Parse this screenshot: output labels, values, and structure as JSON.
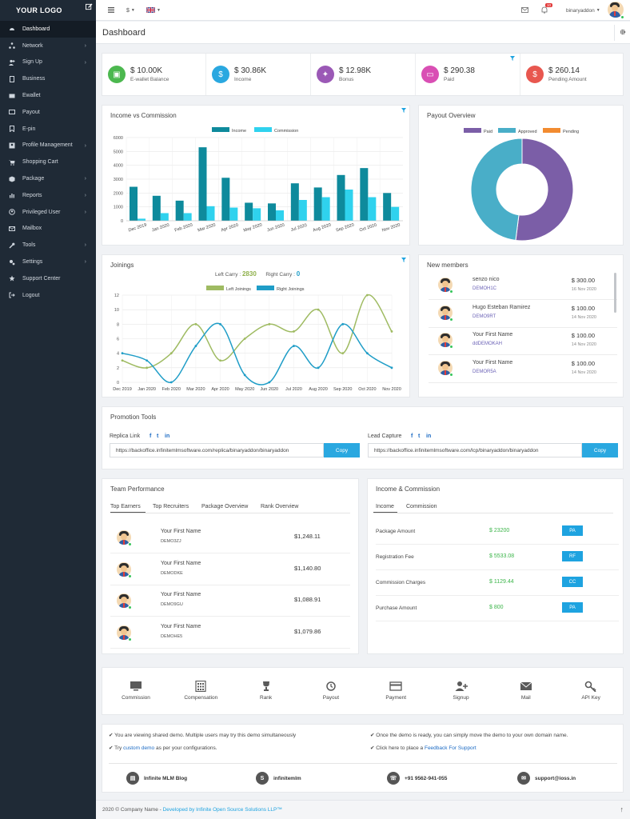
{
  "app": {
    "logo": "YOUR LOGO"
  },
  "sidebar": {
    "items": [
      {
        "label": "Dashboard",
        "icon": "dashboard-icon",
        "arrow": false,
        "active": true
      },
      {
        "label": "Network",
        "icon": "network-icon",
        "arrow": true
      },
      {
        "label": "Sign Up",
        "icon": "user-plus-icon",
        "arrow": true
      },
      {
        "label": "Business",
        "icon": "business-icon",
        "arrow": false
      },
      {
        "label": "Ewallet",
        "icon": "wallet-icon",
        "arrow": false
      },
      {
        "label": "Payout",
        "icon": "payout-icon",
        "arrow": false
      },
      {
        "label": "E-pin",
        "icon": "bookmark-icon",
        "arrow": false
      },
      {
        "label": "Profile Management",
        "icon": "profile-icon",
        "arrow": true
      },
      {
        "label": "Shopping Cart",
        "icon": "cart-icon",
        "arrow": false
      },
      {
        "label": "Package",
        "icon": "package-icon",
        "arrow": true
      },
      {
        "label": "Reports",
        "icon": "reports-icon",
        "arrow": true
      },
      {
        "label": "Privileged User",
        "icon": "privileged-user-icon",
        "arrow": true
      },
      {
        "label": "Mailbox",
        "icon": "mailbox-icon",
        "arrow": false
      },
      {
        "label": "Tools",
        "icon": "tools-icon",
        "arrow": true
      },
      {
        "label": "Settings",
        "icon": "settings-icon",
        "arrow": true
      },
      {
        "label": "Support Center",
        "icon": "support-icon",
        "arrow": false
      },
      {
        "label": "Logout",
        "icon": "logout-icon",
        "arrow": false
      }
    ]
  },
  "topbar": {
    "currency": "$",
    "notifications": "10",
    "username": "binaryaddon"
  },
  "page": {
    "title": "Dashboard"
  },
  "stats": [
    {
      "value": "$ 10.00K",
      "label": "E-wallet Balance",
      "color": "#4cb84f"
    },
    {
      "value": "$ 30.86K",
      "label": "Income",
      "color": "#2aa8e0"
    },
    {
      "value": "$ 12.98K",
      "label": "Bonus",
      "color": "#9b59b6"
    },
    {
      "value": "$ 290.38",
      "label": "Paid",
      "color": "#d94fb4"
    },
    {
      "value": "$ 260.14",
      "label": "Pending Amount",
      "color": "#e8574f"
    }
  ],
  "income_chart": {
    "title": "Income vs Commission",
    "legend": [
      "Income",
      "Commission"
    ],
    "colors": [
      "#0e8a9c",
      "#2fd2ee"
    ]
  },
  "payout_chart": {
    "title": "Payout Overview",
    "legend": [
      "Paid",
      "Approved",
      "Pending"
    ],
    "colors": [
      "#7b5ea7",
      "#49aec8",
      "#f28b30"
    ]
  },
  "joinings_chart": {
    "title": "Joinings",
    "left_carry_label": "Left Carry :",
    "left_carry": "2830",
    "right_carry_label": "Right Carry :",
    "right_carry": "0",
    "legend": [
      "Left Joinings",
      "Right Joinings"
    ],
    "colors": [
      "#9fbb62",
      "#1f9dc7"
    ]
  },
  "chart_data": [
    {
      "type": "bar",
      "title": "Income vs Commission",
      "categories": [
        "Dec 2019",
        "Jan 2020",
        "Feb 2020",
        "Mar 2020",
        "Apr 2020",
        "May 2020",
        "Jun 2020",
        "Jul 2020",
        "Aug 2020",
        "Sep 2020",
        "Oct 2020",
        "Nov 2020"
      ],
      "series": [
        {
          "name": "Income",
          "values": [
            2450,
            1800,
            1450,
            5300,
            3100,
            1300,
            1250,
            2700,
            2400,
            3300,
            3800,
            2000
          ]
        },
        {
          "name": "Commission",
          "values": [
            150,
            550,
            550,
            1050,
            950,
            900,
            750,
            1500,
            1700,
            2250,
            1700,
            1000
          ]
        }
      ],
      "ylim": [
        0,
        6000
      ],
      "yticks": [
        0,
        1000,
        2000,
        3000,
        4000,
        5000,
        6000
      ],
      "grid": true,
      "legend": "top-center"
    },
    {
      "type": "pie",
      "title": "Payout Overview",
      "categories": [
        "Paid",
        "Approved",
        "Pending"
      ],
      "values": [
        52,
        48,
        0
      ],
      "legend": "top-center"
    },
    {
      "type": "line",
      "title": "Joinings",
      "categories": [
        "Dec 2019",
        "Jan 2020",
        "Feb 2020",
        "Mar 2020",
        "Apr 2020",
        "May 2020",
        "Jun 2020",
        "Jul 2020",
        "Aug 2020",
        "Sep 2020",
        "Oct 2020",
        "Nov 2020"
      ],
      "series": [
        {
          "name": "Left Joinings",
          "values": [
            3,
            2,
            4,
            8,
            3,
            6,
            8,
            7,
            10,
            4,
            12,
            7
          ]
        },
        {
          "name": "Right Joinings",
          "values": [
            4,
            3,
            0,
            5,
            8,
            1,
            0,
            5,
            2,
            8,
            4,
            2
          ]
        }
      ],
      "ylim": [
        0,
        12
      ],
      "yticks": [
        0,
        2,
        4,
        6,
        8,
        10,
        12
      ],
      "grid": true,
      "legend": "top-center"
    }
  ],
  "new_members": {
    "title": "New members",
    "items": [
      {
        "name": "senzo nico",
        "id": "DEMOH1C",
        "amount": "$ 300.00",
        "date": "16 Nov 2020"
      },
      {
        "name": "Hugo Esteban Ramirez",
        "id": "DEMO9RT",
        "amount": "$ 100.00",
        "date": "14 Nov 2020"
      },
      {
        "name": "Your First Name",
        "id": "ddDEMOKAH",
        "amount": "$ 100.00",
        "date": "14 Nov 2020"
      },
      {
        "name": "Your First Name",
        "id": "DEMOR5A",
        "amount": "$ 100.00",
        "date": "14 Nov 2020"
      }
    ]
  },
  "promotion": {
    "title": "Promotion Tools",
    "replica_label": "Replica Link",
    "replica_url": "https://backoffice.infinitemlmsoftware.com/replica/binaryaddon/binaryaddon",
    "lead_label": "Lead Capture",
    "lead_url": "https://backoffice.infinitemlmsoftware.com/lcp/binaryaddon/binaryaddon",
    "copy_label": "Copy",
    "social": [
      "f",
      "t",
      "in"
    ]
  },
  "team": {
    "title": "Team Performance",
    "tabs": [
      "Top Earners",
      "Top Recruiters",
      "Package Overview",
      "Rank Overview"
    ],
    "rows": [
      {
        "name": "Your First Name",
        "id": "DEMO3ZJ",
        "amount": "$1,248.11"
      },
      {
        "name": "Your First Name",
        "id": "DEMODKE",
        "amount": "$1,140.80"
      },
      {
        "name": "Your First Name",
        "id": "DEMO9GU",
        "amount": "$1,088.91"
      },
      {
        "name": "Your First Name",
        "id": "DEMOHE5",
        "amount": "$1,079.86"
      }
    ]
  },
  "income_commission": {
    "title": "Income & Commission",
    "tabs": [
      "Income",
      "Commission"
    ],
    "rows": [
      {
        "label": "Package Amount",
        "value": "$ 23200",
        "badge": "PA"
      },
      {
        "label": "Registration Fee",
        "value": "$ 5533.08",
        "badge": "RF"
      },
      {
        "label": "Commission Charges",
        "value": "$ 1129.44",
        "badge": "CC"
      },
      {
        "label": "Purchase Amount",
        "value": "$ 800",
        "badge": "PA"
      }
    ]
  },
  "quick_links": [
    {
      "label": "Commission",
      "icon": "monitor-icon"
    },
    {
      "label": "Compensation",
      "icon": "calculator-icon"
    },
    {
      "label": "Rank",
      "icon": "trophy-icon"
    },
    {
      "label": "Payout",
      "icon": "history-icon"
    },
    {
      "label": "Payment",
      "icon": "credit-card-icon"
    },
    {
      "label": "Signup",
      "icon": "user-add-icon"
    },
    {
      "label": "Mail",
      "icon": "mail-icon"
    },
    {
      "label": "API Key",
      "icon": "key-icon"
    }
  ],
  "notes": {
    "n1": "You are viewing shared demo. Multiple users may try this demo simultaneously",
    "n2_pre": "Try",
    "n2_link": "custom demo",
    "n2_post": "as per your configurations.",
    "n3": "Once the demo is ready, you can simply move the demo to your own domain name.",
    "n4_pre": "Click here to place a",
    "n4_link": "Feedback For Support"
  },
  "contacts": [
    {
      "label": "Infinite MLM Blog",
      "icon": "blog-icon"
    },
    {
      "label": "infinitemlm",
      "icon": "skype-icon"
    },
    {
      "label": "+91 9562-941-055",
      "icon": "whatsapp-icon"
    },
    {
      "label": "support@ioss.in",
      "icon": "email-icon"
    }
  ],
  "footer": {
    "text": "2020 © Company Name -",
    "link": "Developed by Infinite Open Source Solutions LLP™"
  }
}
